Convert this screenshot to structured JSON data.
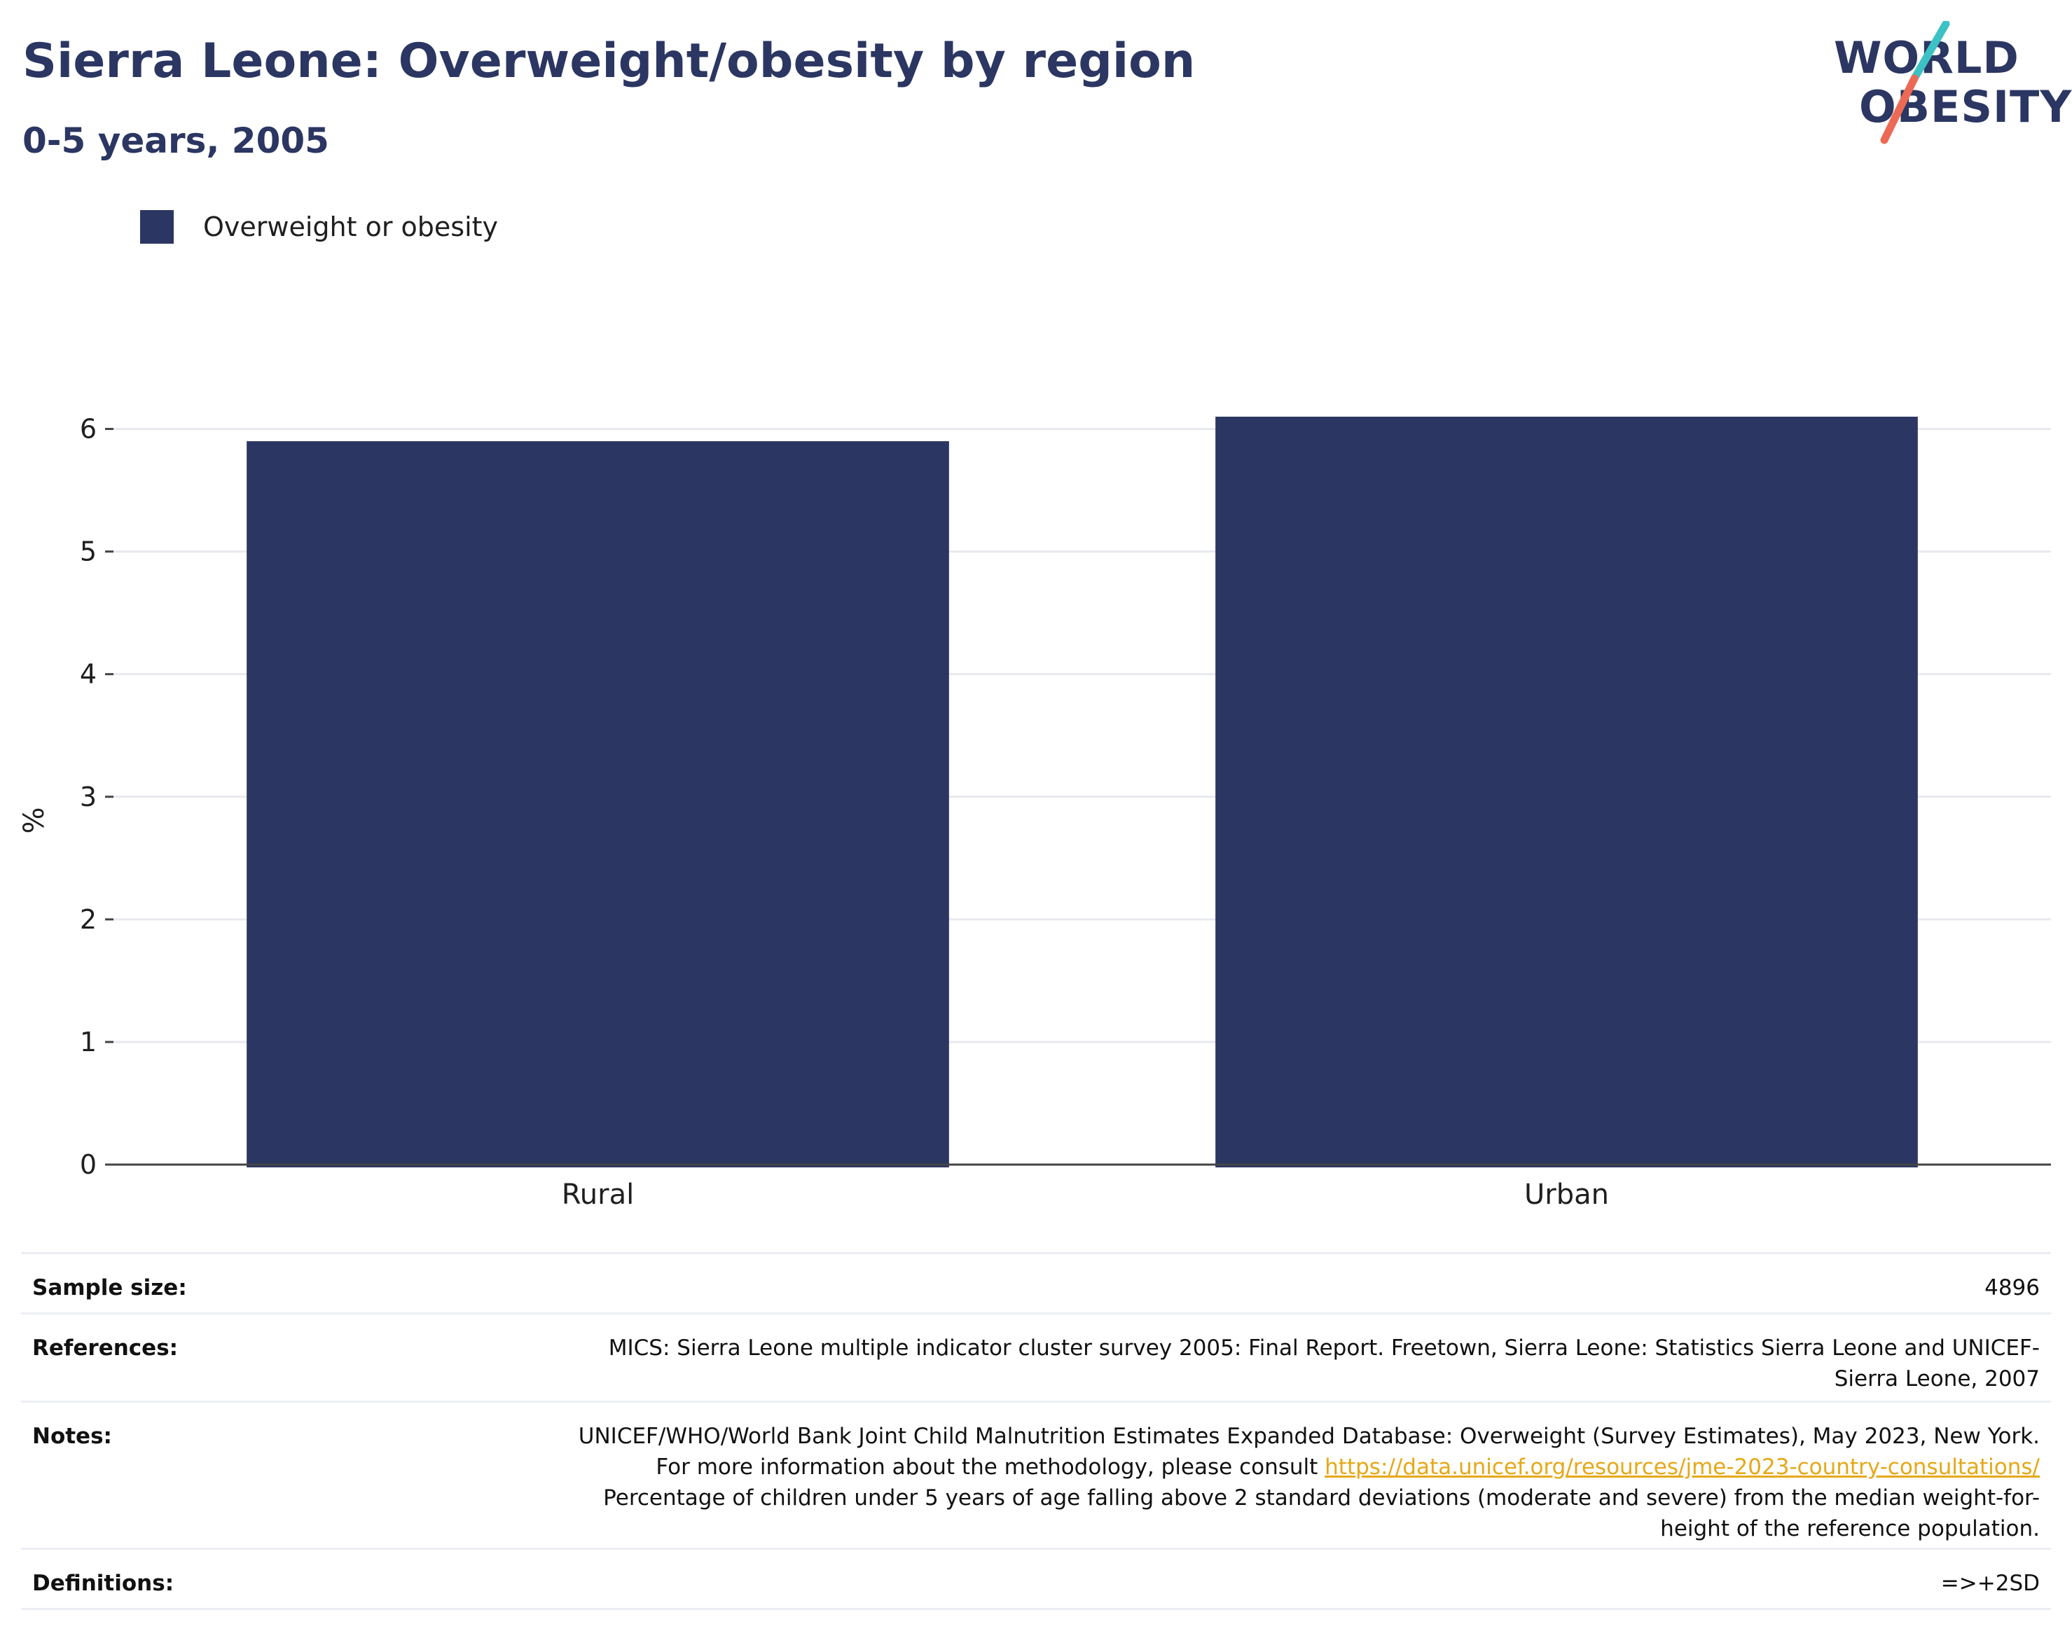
{
  "header": {
    "title": "Sierra Leone: Overweight/obesity by region",
    "subtitle": "0-5 years, 2005"
  },
  "logo": {
    "line1": "WORLD",
    "line2": "OBESITY",
    "colors": {
      "text": "#2b3662",
      "slash_top": "#3cc1c4",
      "slash_bottom": "#ec6a55"
    }
  },
  "legend": {
    "label": "Overweight or obesity"
  },
  "chart_data": {
    "type": "bar",
    "categories": [
      "Rural",
      "Urban"
    ],
    "series": [
      {
        "name": "Overweight or obesity",
        "values": [
          5.9,
          6.1
        ],
        "color": "#2b3662"
      }
    ],
    "ylabel": "%",
    "xlabel": "",
    "ylim": [
      0,
      6.3
    ],
    "yticks": [
      0,
      1,
      2,
      3,
      4,
      5,
      6
    ],
    "grid": true,
    "legend_position": "top-left"
  },
  "meta": {
    "sample_size": {
      "label": "Sample size:",
      "value": "4896"
    },
    "references": {
      "label": "References:",
      "value": "MICS: Sierra Leone multiple indicator cluster survey 2005: Final Report. Freetown, Sierra Leone: Statistics Sierra Leone and UNICEF-Sierra Leone, 2007"
    },
    "notes": {
      "label": "Notes:",
      "text_before": "UNICEF/WHO/World Bank Joint Child Malnutrition Estimates Expanded Database: Overweight (Survey Estimates), May 2023, New York. For more information about the methodology, please consult ",
      "link": "https://data.unicef.org/resources/jme-2023-country-consultations/",
      "text_after": " Percentage of children under 5 years of age falling above 2 standard deviations (moderate and severe) from the median weight-for-height of the reference population."
    },
    "definitions": {
      "label": "Definitions:",
      "value": "=>+2SD"
    }
  }
}
